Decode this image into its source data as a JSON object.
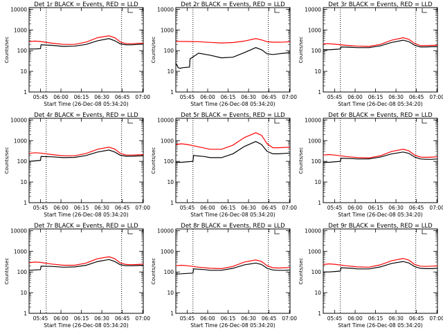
{
  "figure": {
    "xtick_labels": [
      "05:45",
      "06:00",
      "06:15",
      "06:30",
      "06:45",
      "07:00"
    ],
    "ytick_labels": [
      "10000",
      "1000",
      "100",
      "10",
      "1"
    ],
    "ylabel": "Counts/sec",
    "xlabel": "Start Time (26-Dec-08 05:34:20)",
    "colors": {
      "events": "#000000",
      "lld": "#ff0000"
    }
  },
  "chart_data": [
    {
      "type": "line",
      "title": "Det 1r BLACK = Events, RED = LLD",
      "ylog": true,
      "ylim": [
        1,
        12000
      ],
      "xlim": [
        0,
        100
      ],
      "vlines": [
        15,
        81
      ],
      "series": [
        {
          "color": "#000000",
          "x": [
            0,
            5,
            10,
            10.5,
            20,
            30,
            40,
            50,
            60,
            70,
            75,
            80,
            85,
            90,
            95,
            100
          ],
          "y": [
            120,
            120,
            125,
            190,
            180,
            160,
            165,
            200,
            300,
            380,
            300,
            210,
            190,
            190,
            200,
            205
          ]
        },
        {
          "color": "#ff0000",
          "x": [
            0,
            5,
            10,
            20,
            30,
            40,
            50,
            60,
            70,
            75,
            80,
            85,
            90,
            95,
            100
          ],
          "y": [
            270,
            290,
            275,
            230,
            200,
            200,
            260,
            420,
            520,
            420,
            260,
            215,
            215,
            225,
            230
          ]
        }
      ]
    },
    {
      "type": "line",
      "title": "Det 2r BLACK = Events, RED = LLD",
      "ylog": true,
      "ylim": [
        1,
        12000
      ],
      "xlim": [
        0,
        100
      ],
      "vlines": [
        15,
        81
      ],
      "series": [
        {
          "color": "#000000",
          "x": [
            0,
            2,
            4,
            6,
            12,
            12.5,
            20,
            30,
            40,
            50,
            60,
            70,
            75,
            80,
            85,
            90,
            95,
            100
          ],
          "y": [
            25,
            15,
            14,
            15,
            16,
            40,
            75,
            60,
            45,
            48,
            80,
            140,
            110,
            70,
            65,
            70,
            75,
            80
          ]
        },
        {
          "color": "#ff0000",
          "x": [
            0,
            10,
            20,
            30,
            40,
            50,
            60,
            70,
            75,
            80,
            85,
            90,
            95,
            100
          ],
          "y": [
            280,
            275,
            270,
            250,
            235,
            245,
            290,
            380,
            330,
            270,
            255,
            255,
            260,
            270
          ]
        }
      ]
    },
    {
      "type": "line",
      "title": "Det 3r BLACK = Events, RED = LLD",
      "ylog": true,
      "ylim": [
        1,
        12000
      ],
      "xlim": [
        0,
        100
      ],
      "vlines": [
        15,
        81
      ],
      "series": [
        {
          "color": "#000000",
          "x": [
            0,
            5,
            10,
            15,
            15.5,
            25,
            30,
            40,
            50,
            60,
            70,
            75,
            80,
            85,
            90,
            95,
            100
          ],
          "y": [
            110,
            110,
            115,
            120,
            150,
            145,
            140,
            140,
            170,
            250,
            320,
            270,
            180,
            150,
            150,
            155,
            155
          ]
        },
        {
          "color": "#ff0000",
          "x": [
            0,
            5,
            10,
            20,
            30,
            40,
            50,
            60,
            70,
            75,
            80,
            85,
            90,
            95,
            100
          ],
          "y": [
            210,
            215,
            205,
            180,
            165,
            160,
            200,
            320,
            420,
            350,
            220,
            175,
            175,
            180,
            180
          ]
        }
      ]
    },
    {
      "type": "line",
      "title": "Det 4r BLACK = Events, RED = LLD",
      "ylog": true,
      "ylim": [
        1,
        12000
      ],
      "xlim": [
        0,
        100
      ],
      "vlines": [
        15,
        81
      ],
      "series": [
        {
          "color": "#000000",
          "x": [
            0,
            5,
            10,
            10.5,
            20,
            30,
            40,
            50,
            60,
            70,
            75,
            80,
            85,
            90,
            95,
            100
          ],
          "y": [
            100,
            105,
            110,
            170,
            165,
            150,
            155,
            190,
            280,
            350,
            280,
            195,
            175,
            175,
            180,
            185
          ]
        },
        {
          "color": "#ff0000",
          "x": [
            0,
            5,
            10,
            20,
            30,
            40,
            50,
            60,
            70,
            75,
            80,
            85,
            90,
            95,
            100
          ],
          "y": [
            240,
            260,
            250,
            210,
            185,
            185,
            240,
            380,
            480,
            390,
            240,
            200,
            200,
            205,
            210
          ]
        }
      ]
    },
    {
      "type": "line",
      "title": "Det 5r BLACK = Events, RED = LLD",
      "ylog": true,
      "ylim": [
        1,
        12000
      ],
      "xlim": [
        0,
        100
      ],
      "vlines": [
        15,
        81
      ],
      "series": [
        {
          "color": "#000000",
          "x": [
            0,
            5,
            10,
            15,
            15.5,
            25,
            30,
            40,
            50,
            60,
            70,
            75,
            80,
            85,
            90,
            95,
            100
          ],
          "y": [
            90,
            90,
            95,
            100,
            190,
            170,
            150,
            150,
            230,
            520,
            900,
            650,
            300,
            230,
            230,
            240,
            250
          ]
        },
        {
          "color": "#ff0000",
          "x": [
            0,
            5,
            10,
            20,
            30,
            40,
            50,
            60,
            70,
            75,
            80,
            85,
            90,
            95,
            100
          ],
          "y": [
            650,
            700,
            650,
            500,
            380,
            380,
            600,
            1400,
            2400,
            1800,
            700,
            450,
            450,
            470,
            480
          ]
        }
      ]
    },
    {
      "type": "line",
      "title": "Det 6r BLACK = Events, RED = LLD",
      "ylog": true,
      "ylim": [
        1,
        12000
      ],
      "xlim": [
        0,
        100
      ],
      "vlines": [
        15,
        81
      ],
      "series": [
        {
          "color": "#000000",
          "x": [
            0,
            5,
            10,
            15,
            15.5,
            25,
            30,
            40,
            50,
            60,
            70,
            75,
            80,
            85,
            90,
            95,
            100
          ],
          "y": [
            90,
            90,
            95,
            100,
            140,
            135,
            130,
            130,
            160,
            230,
            280,
            240,
            160,
            130,
            125,
            125,
            130
          ]
        },
        {
          "color": "#ff0000",
          "x": [
            0,
            5,
            10,
            20,
            30,
            40,
            50,
            60,
            70,
            75,
            80,
            85,
            90,
            95,
            100
          ],
          "y": [
            200,
            210,
            200,
            170,
            150,
            145,
            185,
            300,
            380,
            320,
            200,
            160,
            155,
            160,
            165
          ]
        }
      ]
    },
    {
      "type": "line",
      "title": "Det 7r BLACK = Events, RED = LLD",
      "ylog": true,
      "ylim": [
        1,
        12000
      ],
      "xlim": [
        0,
        100
      ],
      "vlines": [
        15,
        81
      ],
      "series": [
        {
          "color": "#000000",
          "x": [
            0,
            5,
            10,
            10.5,
            20,
            30,
            40,
            50,
            60,
            70,
            75,
            80,
            85,
            90,
            95,
            100
          ],
          "y": [
            120,
            125,
            130,
            190,
            185,
            170,
            175,
            210,
            320,
            400,
            320,
            220,
            200,
            200,
            205,
            210
          ]
        },
        {
          "color": "#ff0000",
          "x": [
            0,
            5,
            10,
            20,
            30,
            40,
            50,
            60,
            70,
            75,
            80,
            85,
            90,
            95,
            100
          ],
          "y": [
            280,
            300,
            290,
            240,
            210,
            210,
            270,
            440,
            540,
            440,
            270,
            230,
            225,
            230,
            240
          ]
        }
      ]
    },
    {
      "type": "line",
      "title": "Det 8r BLACK = Events, RED = LLD",
      "ylog": true,
      "ylim": [
        1,
        12000
      ],
      "xlim": [
        0,
        100
      ],
      "vlines": [
        15,
        81
      ],
      "series": [
        {
          "color": "#000000",
          "x": [
            0,
            5,
            10,
            15,
            15.5,
            25,
            30,
            40,
            50,
            60,
            70,
            75,
            80,
            85,
            90,
            95,
            100
          ],
          "y": [
            80,
            82,
            85,
            88,
            140,
            130,
            120,
            120,
            150,
            220,
            270,
            230,
            150,
            125,
            120,
            120,
            125
          ]
        },
        {
          "color": "#ff0000",
          "x": [
            0,
            5,
            10,
            20,
            30,
            40,
            50,
            60,
            70,
            75,
            80,
            85,
            90,
            95,
            100
          ],
          "y": [
            200,
            210,
            200,
            170,
            150,
            145,
            185,
            300,
            380,
            320,
            200,
            160,
            155,
            160,
            165
          ]
        }
      ]
    },
    {
      "type": "line",
      "title": "Det 9r BLACK = Events, RED = LLD",
      "ylog": true,
      "ylim": [
        1,
        12000
      ],
      "xlim": [
        0,
        100
      ],
      "vlines": [
        15,
        81
      ],
      "series": [
        {
          "color": "#000000",
          "x": [
            0,
            5,
            10,
            15,
            15.5,
            25,
            30,
            40,
            50,
            60,
            70,
            75,
            80,
            85,
            90,
            95,
            100
          ],
          "y": [
            100,
            100,
            105,
            110,
            160,
            150,
            140,
            140,
            175,
            260,
            320,
            270,
            180,
            150,
            145,
            145,
            150
          ]
        },
        {
          "color": "#ff0000",
          "x": [
            0,
            5,
            10,
            20,
            30,
            40,
            50,
            60,
            70,
            75,
            80,
            85,
            90,
            95,
            100
          ],
          "y": [
            230,
            245,
            235,
            200,
            175,
            170,
            220,
            350,
            450,
            370,
            230,
            190,
            185,
            190,
            195
          ]
        }
      ]
    }
  ]
}
